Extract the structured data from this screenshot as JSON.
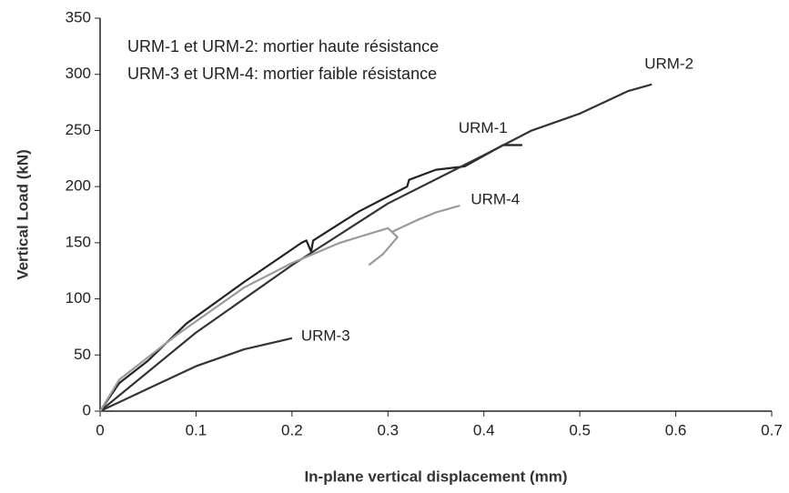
{
  "chart_data": {
    "type": "line",
    "annotations": [
      "URM-1 et URM-2: mortier haute résistance",
      "URM-3 et URM-4: mortier faible résistance"
    ],
    "xlabel": "In-plane vertical displacement (mm)",
    "ylabel": "Vertical Load (kN)",
    "xlim": [
      0,
      0.7
    ],
    "ylim": [
      0,
      350
    ],
    "xticks": [
      0,
      0.1,
      0.2,
      0.3,
      0.4,
      0.5,
      0.6,
      0.7
    ],
    "yticks": [
      0,
      50,
      100,
      150,
      200,
      250,
      300,
      350
    ],
    "grid": false,
    "series": [
      {
        "name": "URM-1",
        "color": "#222222",
        "x": [
          0,
          0.02,
          0.05,
          0.09,
          0.15,
          0.21,
          0.215,
          0.22,
          0.222,
          0.27,
          0.32,
          0.322,
          0.35,
          0.38,
          0.42,
          0.44
        ],
        "values": [
          0,
          25,
          45,
          78,
          115,
          150,
          152,
          142,
          152,
          178,
          200,
          206,
          215,
          218,
          237,
          237
        ]
      },
      {
        "name": "URM-2",
        "color": "#333333",
        "x": [
          0,
          0.1,
          0.2,
          0.3,
          0.4,
          0.45,
          0.5,
          0.55,
          0.575
        ],
        "values": [
          0,
          70,
          130,
          185,
          228,
          250,
          265,
          285,
          291
        ]
      },
      {
        "name": "URM-3",
        "color": "#333333",
        "x": [
          0,
          0.05,
          0.1,
          0.15,
          0.2
        ],
        "values": [
          0,
          20,
          40,
          55,
          65
        ]
      },
      {
        "name": "URM-4",
        "color": "#9a9a9a",
        "x": [
          0,
          0.02,
          0.08,
          0.15,
          0.2,
          0.25,
          0.3,
          0.31,
          0.295,
          0.28,
          0.29,
          0.305,
          0.33,
          0.35,
          0.375
        ],
        "values": [
          0,
          28,
          68,
          110,
          132,
          150,
          163,
          155,
          140,
          130,
          null,
          160,
          170,
          177,
          183
        ]
      }
    ]
  }
}
